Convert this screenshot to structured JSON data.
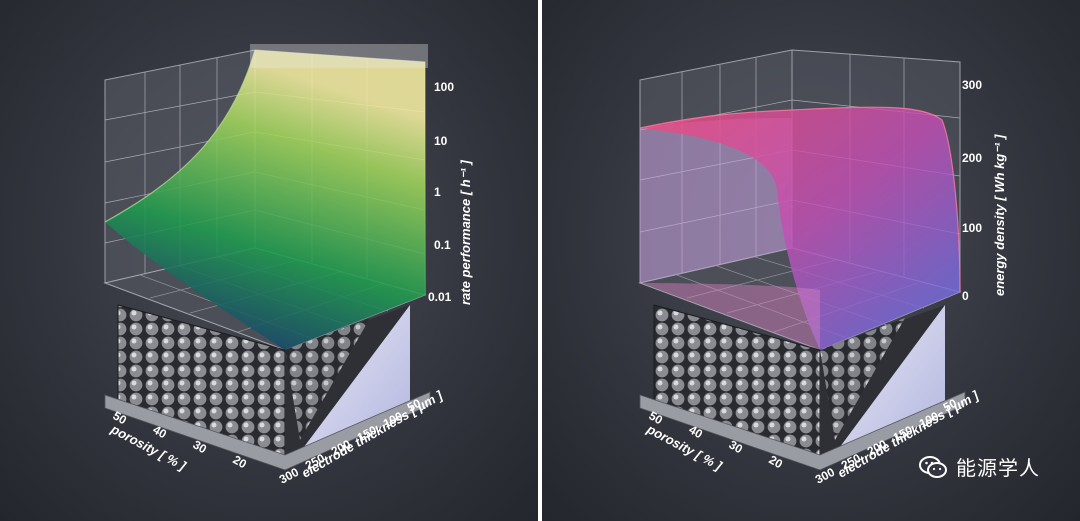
{
  "watermark": {
    "text": "能源学人",
    "icon": "wechat-icon"
  },
  "chart_data": [
    {
      "type": "surface3d",
      "zlabel": "rate performance [ h⁻¹ ]",
      "zscale": "log",
      "zticks": [
        "100",
        "10",
        "1",
        "0.1",
        "0.01"
      ],
      "zlim": [
        0.01,
        100
      ],
      "xlabel": "porosity [ % ]",
      "xticks": [
        "50",
        "40",
        "30",
        "20"
      ],
      "ylabel": "electrode thickness [ µm ]",
      "yticks": [
        "50",
        "100",
        "150",
        "200",
        "250",
        "300"
      ],
      "surface_colors": [
        "#1a1f8a",
        "#1f9a4a",
        "#f0e890"
      ],
      "grid": true
    },
    {
      "type": "surface3d",
      "zlabel": "energy density [ Wh kg⁻¹ ]",
      "zscale": "linear",
      "zticks": [
        "300",
        "200",
        "100",
        "0"
      ],
      "zlim": [
        0,
        300
      ],
      "xlabel": "porosity [ % ]",
      "xticks": [
        "50",
        "40",
        "30",
        "20"
      ],
      "ylabel": "electrode thickness [ µm ]",
      "yticks": [
        "50",
        "100",
        "150",
        "200",
        "250",
        "300"
      ],
      "surface_colors": [
        "#5a6ee8",
        "#c64fb0",
        "#f04a7a"
      ],
      "grid": true
    }
  ]
}
